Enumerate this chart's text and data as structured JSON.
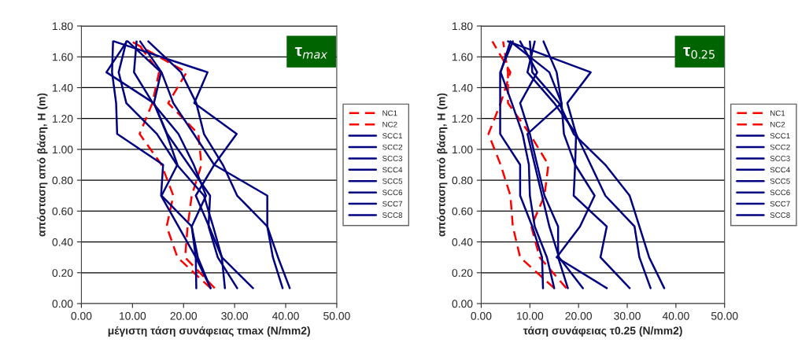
{
  "chart_data": [
    {
      "type": "line",
      "xlabel": "μέγιστη τάση συνάφειας τmax (N/mm2)",
      "ylabel": "απόσταση από βάση, H (m)",
      "annotations": [
        "τ$_{max}$"
      ],
      "xlim": [
        0,
        50
      ],
      "xticks": [
        {
          "value": 0,
          "label": "0.00"
        },
        {
          "value": 10,
          "label": "10.00"
        },
        {
          "value": 20,
          "label": "20.00"
        },
        {
          "value": 30,
          "label": "30.00"
        },
        {
          "value": 40,
          "label": "40.00"
        },
        {
          "value": 50,
          "label": "50.00"
        }
      ],
      "ylim": [
        0,
        1.8
      ],
      "yticks": [
        {
          "value": 0,
          "label": "0.00"
        },
        {
          "value": 0.2,
          "label": "0.20"
        },
        {
          "value": 0.4,
          "label": "0.40"
        },
        {
          "value": 0.6,
          "label": "0.60"
        },
        {
          "value": 0.8,
          "label": "0.80"
        },
        {
          "value": 1.0,
          "label": "1.00"
        },
        {
          "value": 1.2,
          "label": "1.20"
        },
        {
          "value": 1.4,
          "label": "1.40"
        },
        {
          "value": 1.6,
          "label": "1.60"
        },
        {
          "value": 1.8,
          "label": "1.80"
        }
      ],
      "grid": "y",
      "legend": "right",
      "marker": "none",
      "series": [
        {
          "name": "NC1",
          "color": "#ff0000",
          "line_style": "dashed",
          "x": [
            26.1,
            20.3,
            20.8,
            21.6,
            23.5,
            22.9,
            17.0,
            20.6,
            9.8
          ],
          "values": [
            0.1,
            0.3,
            0.5,
            0.7,
            0.9,
            1.1,
            1.3,
            1.5,
            1.7
          ]
        },
        {
          "name": "NC2",
          "color": "#ff0000",
          "line_style": "dashed",
          "x": [
            25.3,
            18.8,
            16.7,
            18.0,
            15.7,
            11.4,
            13.9,
            15.2,
            10.8
          ],
          "values": [
            0.1,
            0.3,
            0.5,
            0.7,
            0.9,
            1.1,
            1.3,
            1.5,
            1.7
          ]
        },
        {
          "name": "SCC1",
          "color": "#000080",
          "line_style": "solid",
          "x": [
            40.8,
            38.5,
            36.4,
            30.5,
            27.7,
            24.0,
            22.5,
            19.5,
            13.1
          ],
          "values": [
            0.1,
            0.3,
            0.5,
            0.7,
            0.9,
            1.1,
            1.3,
            1.5,
            1.7
          ]
        },
        {
          "name": "SCC2",
          "color": "#000080",
          "line_style": "solid",
          "x": [
            39.4,
            37.5,
            36.4,
            36.4,
            26.0,
            22.0,
            18.0,
            15.7,
            11.5
          ],
          "values": [
            0.1,
            0.3,
            0.5,
            0.7,
            0.9,
            1.1,
            1.3,
            1.5,
            1.7
          ]
        },
        {
          "name": "SCC3",
          "color": "#000080",
          "line_style": "solid",
          "x": [
            33.6,
            27.5,
            25.0,
            22.4,
            26.0,
            30.4,
            22.1,
            24.7,
            6.4
          ],
          "values": [
            0.1,
            0.3,
            0.5,
            0.7,
            0.9,
            1.1,
            1.3,
            1.5,
            1.7
          ]
        },
        {
          "name": "SCC4",
          "color": "#000080",
          "line_style": "solid",
          "x": [
            30.5,
            26.7,
            24.9,
            25.2,
            21.0,
            16.8,
            14.2,
            4.9,
            8.9
          ],
          "values": [
            0.1,
            0.3,
            0.5,
            0.7,
            0.9,
            1.1,
            1.3,
            1.5,
            1.7
          ]
        },
        {
          "name": "SCC5",
          "color": "#000080",
          "line_style": "solid",
          "x": [
            22.5,
            22.4,
            19.0,
            15.6,
            16.0,
            7.0,
            6.8,
            6.0,
            6.2
          ],
          "values": [
            0.1,
            0.3,
            0.5,
            0.7,
            0.9,
            1.1,
            1.3,
            1.5,
            1.7
          ]
        },
        {
          "name": "SCC6",
          "color": "#000080",
          "line_style": "solid",
          "x": [
            28.1,
            27.5,
            25.8,
            24.0,
            18.7,
            14.8,
            8.8,
            7.3,
            8.8
          ],
          "values": [
            0.1,
            0.3,
            0.5,
            0.7,
            0.9,
            1.1,
            1.3,
            1.5,
            1.7
          ]
        },
        {
          "name": "SCC7",
          "color": "#000080",
          "line_style": "solid",
          "x": [
            25.3,
            22.8,
            21.6,
            24.4,
            22.0,
            19.0,
            14.0,
            10.3,
            10.8
          ],
          "values": [
            0.1,
            0.3,
            0.5,
            0.7,
            0.9,
            1.1,
            1.3,
            1.5,
            1.7
          ]
        },
        {
          "name": "SCC8",
          "color": "#000080",
          "line_style": "solid",
          "x": [
            25.3,
            22.4,
            21.6,
            15.7,
            18.8,
            16.7,
            14.2,
            15.6,
            9.1
          ],
          "values": [
            0.1,
            0.3,
            0.5,
            0.7,
            0.9,
            1.1,
            1.3,
            1.5,
            1.7
          ]
        }
      ]
    },
    {
      "type": "line",
      "xlabel": "τάση συνάφειας τ0.25 (N/mm2)",
      "ylabel": "απόσταση από βάση, H (m)",
      "annotations": [
        "τ$_{0.25}$"
      ],
      "xlim": [
        0,
        50
      ],
      "xticks": [
        {
          "value": 0,
          "label": "0.00"
        },
        {
          "value": 10,
          "label": "10.00"
        },
        {
          "value": 20,
          "label": "20.00"
        },
        {
          "value": 30,
          "label": "30.00"
        },
        {
          "value": 40,
          "label": "40.00"
        },
        {
          "value": 50,
          "label": "50.00"
        }
      ],
      "ylim": [
        0,
        1.8
      ],
      "yticks": [
        {
          "value": 0,
          "label": "0.00"
        },
        {
          "value": 0.2,
          "label": "0.20"
        },
        {
          "value": 0.4,
          "label": "0.40"
        },
        {
          "value": 0.6,
          "label": "0.60"
        },
        {
          "value": 0.8,
          "label": "0.80"
        },
        {
          "value": 1.0,
          "label": "1.00"
        },
        {
          "value": 1.2,
          "label": "1.20"
        },
        {
          "value": 1.4,
          "label": "1.40"
        },
        {
          "value": 1.6,
          "label": "1.60"
        },
        {
          "value": 1.8,
          "label": "1.80"
        }
      ],
      "grid": "y",
      "legend": "right",
      "marker": "none",
      "series": [
        {
          "name": "NC1",
          "color": "#ff0000",
          "line_style": "dashed",
          "x": [
            15.0,
            8.0,
            6.5,
            6.0,
            4.0,
            1.5,
            4.0,
            6.0,
            2.3
          ],
          "values": [
            0.1,
            0.3,
            0.5,
            0.7,
            0.9,
            1.1,
            1.3,
            1.5,
            1.7
          ]
        },
        {
          "name": "NC2",
          "color": "#ff0000",
          "line_style": "dashed",
          "x": [
            17.5,
            12.0,
            10.3,
            13.0,
            13.8,
            10.0,
            5.5,
            5.5,
            4.5
          ],
          "values": [
            0.1,
            0.3,
            0.5,
            0.7,
            0.9,
            1.1,
            1.3,
            1.5,
            1.7
          ]
        },
        {
          "name": "SCC1",
          "color": "#000080",
          "line_style": "solid",
          "x": [
            25.8,
            15.5,
            20.3,
            23.3,
            19.3,
            17.0,
            16.5,
            15.5,
            12.8
          ],
          "values": [
            0.1,
            0.3,
            0.5,
            0.7,
            0.9,
            1.1,
            1.3,
            1.5,
            1.7
          ]
        },
        {
          "name": "SCC2",
          "color": "#000080",
          "line_style": "solid",
          "x": [
            30.5,
            24.5,
            25.8,
            19.0,
            19.3,
            19.5,
            17.7,
            22.5,
            5.5
          ],
          "values": [
            0.1,
            0.3,
            0.5,
            0.7,
            0.9,
            1.1,
            1.3,
            1.5,
            1.7
          ]
        },
        {
          "name": "SCC3",
          "color": "#000080",
          "line_style": "solid",
          "x": [
            20.9,
            16.0,
            14.0,
            12.5,
            11.0,
            9.5,
            16.5,
            14.0,
            6.0
          ],
          "values": [
            0.1,
            0.3,
            0.5,
            0.7,
            0.9,
            1.1,
            1.3,
            1.5,
            1.7
          ]
        },
        {
          "name": "SCC4",
          "color": "#000080",
          "line_style": "solid",
          "x": [
            37.6,
            34.5,
            32.5,
            30.5,
            25.5,
            19.0,
            16.0,
            10.5,
            10.0
          ],
          "values": [
            0.1,
            0.3,
            0.5,
            0.7,
            0.9,
            1.1,
            1.3,
            1.5,
            1.7
          ]
        },
        {
          "name": "SCC5",
          "color": "#000080",
          "line_style": "solid",
          "x": [
            34.8,
            32.5,
            31.5,
            25.5,
            22.5,
            19.5,
            15.0,
            9.5,
            11.0
          ],
          "values": [
            0.1,
            0.3,
            0.5,
            0.7,
            0.9,
            1.1,
            1.3,
            1.5,
            1.7
          ]
        },
        {
          "name": "SCC6",
          "color": "#000080",
          "line_style": "solid",
          "x": [
            12.7,
            12.5,
            10.5,
            8.0,
            8.0,
            3.9,
            3.9,
            3.9,
            6.5
          ],
          "values": [
            0.1,
            0.3,
            0.5,
            0.7,
            0.9,
            1.1,
            1.3,
            1.5,
            1.7
          ]
        },
        {
          "name": "SCC7",
          "color": "#000080",
          "line_style": "solid",
          "x": [
            17.8,
            15.8,
            15.8,
            13.0,
            11.5,
            10.0,
            8.0,
            11.5,
            8.0
          ],
          "values": [
            0.1,
            0.3,
            0.5,
            0.7,
            0.9,
            1.1,
            1.3,
            1.5,
            1.7
          ]
        },
        {
          "name": "SCC8",
          "color": "#000080",
          "line_style": "solid",
          "x": [
            15.0,
            13.5,
            11.0,
            10.0,
            9.8,
            8.5,
            6.3,
            4.0,
            6.0
          ],
          "values": [
            0.1,
            0.3,
            0.5,
            0.7,
            0.9,
            1.1,
            1.3,
            1.5,
            1.7
          ]
        }
      ]
    }
  ]
}
